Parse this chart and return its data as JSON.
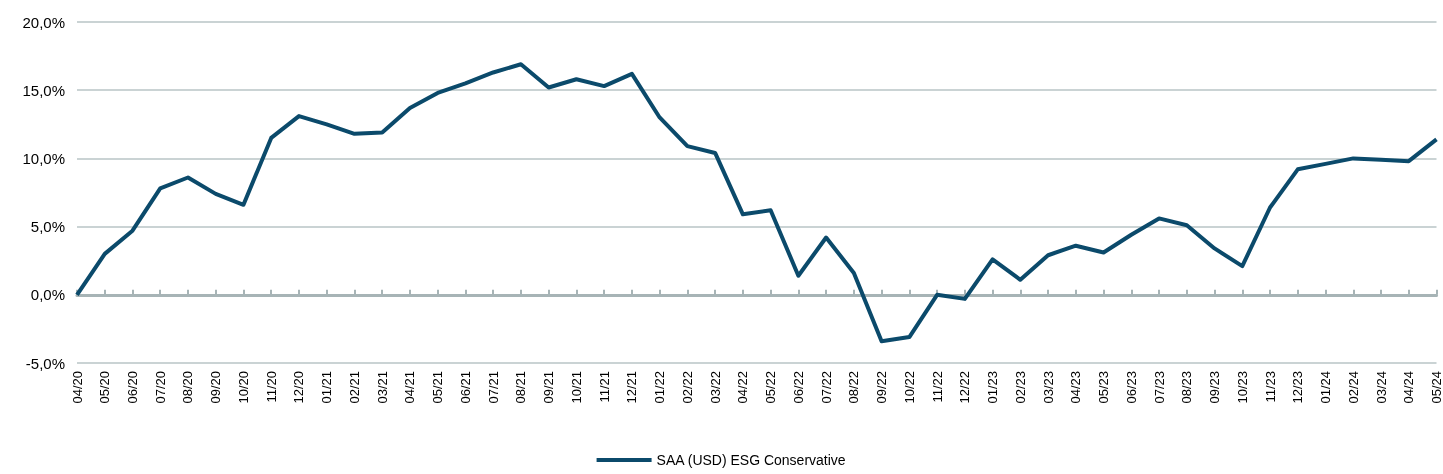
{
  "chart_data": {
    "type": "line",
    "categories": [
      "04/20",
      "05/20",
      "06/20",
      "07/20",
      "08/20",
      "09/20",
      "10/20",
      "11/20",
      "12/20",
      "01/21",
      "02/21",
      "03/21",
      "04/21",
      "05/21",
      "06/21",
      "07/21",
      "08/21",
      "09/21",
      "10/21",
      "11/21",
      "12/21",
      "01/22",
      "02/22",
      "03/22",
      "04/22",
      "05/22",
      "06/22",
      "07/22",
      "08/22",
      "09/22",
      "10/22",
      "11/22",
      "12/22",
      "01/23",
      "02/23",
      "03/23",
      "04/23",
      "05/23",
      "06/23",
      "07/23",
      "08/23",
      "09/23",
      "10/23",
      "11/23",
      "12/23",
      "01/24",
      "02/24",
      "03/24",
      "04/24",
      "05/24"
    ],
    "series": [
      {
        "name": "SAA (USD) ESG Conservative",
        "color": "#0b4a6b",
        "values": [
          0.0,
          3.0,
          4.7,
          7.8,
          8.6,
          7.4,
          6.6,
          11.5,
          13.1,
          12.5,
          11.8,
          11.9,
          13.7,
          14.8,
          15.5,
          16.3,
          16.9,
          15.2,
          15.8,
          15.3,
          16.2,
          13.0,
          10.9,
          10.4,
          5.9,
          6.2,
          1.4,
          4.2,
          1.6,
          -3.4,
          -3.1,
          0.0,
          -0.3,
          2.6,
          1.1,
          2.9,
          3.6,
          3.1,
          4.4,
          5.6,
          5.1,
          3.4,
          2.1,
          6.4,
          9.2,
          9.6,
          10.0,
          9.9,
          9.8,
          11.4
        ]
      }
    ],
    "ylim": [
      -5,
      20
    ],
    "yticks": [
      {
        "value": -5,
        "label": "-5,0%"
      },
      {
        "value": 0,
        "label": "0,0%"
      },
      {
        "value": 5,
        "label": "5,0%"
      },
      {
        "value": 10,
        "label": "10,0%"
      },
      {
        "value": 15,
        "label": "15,0%"
      },
      {
        "value": 20,
        "label": "20,0%"
      }
    ],
    "grid": "y",
    "legend": "bottom",
    "marker": "none",
    "line_style": "solid"
  }
}
